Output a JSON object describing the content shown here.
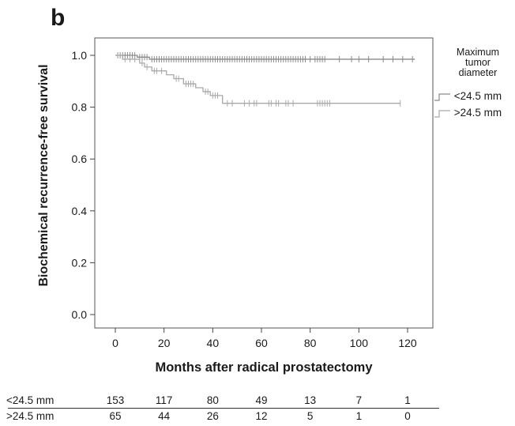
{
  "panel_label": "b",
  "chart_data": {
    "type": "line",
    "subtype": "kaplan-meier",
    "title": "",
    "xlabel": "Months after radical prostatectomy",
    "ylabel": "Biochemical recurrence-free survival",
    "xlim": [
      0,
      125
    ],
    "ylim": [
      0.0,
      1.0
    ],
    "xticks": [
      0,
      20,
      40,
      60,
      80,
      100,
      120
    ],
    "xtick_labels": [
      "0",
      "20",
      "40",
      "60",
      "80",
      "100",
      "120"
    ],
    "yticks": [
      0.0,
      0.2,
      0.4,
      0.6,
      0.8,
      1.0
    ],
    "ytick_labels": [
      "0.0",
      "0.2",
      "0.4",
      "0.6",
      "0.8",
      "1.0"
    ],
    "grid": false,
    "legend": {
      "title": [
        "Maximum",
        "tumor",
        "diameter"
      ],
      "position": "right"
    },
    "series": [
      {
        "name": "<24.5 mm",
        "color": "#8a8a8a",
        "steps": [
          [
            0,
            1.0
          ],
          [
            9,
            0.993
          ],
          [
            14,
            0.985
          ],
          [
            123,
            0.985
          ]
        ],
        "censored": [
          1,
          2,
          3,
          4,
          5,
          6,
          7,
          8,
          10,
          11,
          12,
          13,
          15,
          16,
          17,
          18,
          19,
          20,
          21,
          22,
          23,
          24,
          25,
          26,
          27,
          28,
          29,
          30,
          31,
          32,
          33,
          34,
          35,
          36,
          37,
          38,
          39,
          40,
          41,
          42,
          43,
          44,
          45,
          46,
          47,
          48,
          49,
          50,
          51,
          52,
          53,
          54,
          55,
          56,
          57,
          58,
          59,
          60,
          61,
          62,
          63,
          64,
          65,
          66,
          67,
          68,
          69,
          70,
          71,
          72,
          73,
          74,
          75,
          76,
          77,
          78,
          80,
          82,
          83,
          84,
          85,
          86,
          92,
          97,
          100,
          104,
          110,
          114,
          118,
          122
        ]
      },
      {
        "name": ">24.5 mm",
        "color": "#a9a9a9",
        "steps": [
          [
            0,
            1.0
          ],
          [
            3,
            0.985
          ],
          [
            10,
            0.97
          ],
          [
            12,
            0.955
          ],
          [
            15,
            0.94
          ],
          [
            21,
            0.925
          ],
          [
            24,
            0.91
          ],
          [
            28,
            0.89
          ],
          [
            33,
            0.875
          ],
          [
            36,
            0.86
          ],
          [
            39,
            0.845
          ],
          [
            44,
            0.815
          ],
          [
            117,
            0.815
          ]
        ],
        "censored": [
          1,
          2,
          4,
          6,
          8,
          11,
          13,
          16,
          17,
          19,
          25,
          26,
          29,
          30,
          31,
          32,
          37,
          38,
          40,
          41,
          42,
          46,
          48,
          53,
          55,
          57,
          58,
          63,
          64,
          66,
          67,
          70,
          71,
          73,
          83,
          84,
          85,
          86,
          87,
          88,
          117
        ]
      }
    ]
  },
  "risk_table": {
    "time_points": [
      0,
      20,
      40,
      60,
      80,
      100,
      120
    ],
    "rows": [
      {
        "label": "<24.5 mm",
        "values": [
          "153",
          "117",
          "80",
          "49",
          "13",
          "7",
          "1"
        ]
      },
      {
        "label": ">24.5 mm",
        "values": [
          "65",
          "44",
          "26",
          "12",
          "5",
          "1",
          "0"
        ]
      }
    ]
  }
}
